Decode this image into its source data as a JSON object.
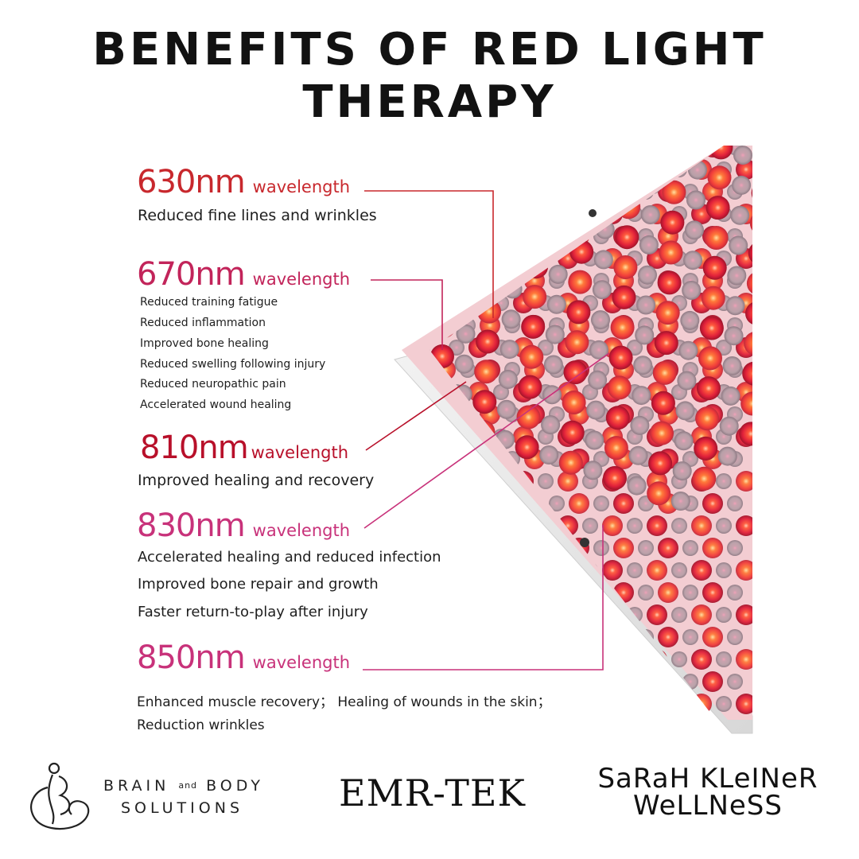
{
  "title": "BENEFITS OF RED LIGHT THERAPY",
  "colors": {
    "red": "#c8282d",
    "pink": "#c8327a",
    "dark_red": "#b8102a",
    "panel_bg": "#f3cdd2",
    "title": "#121212"
  },
  "wavelengths": [
    {
      "value": "630nm",
      "word": "wavelength",
      "color": "#c8282d",
      "benefits": [
        "Reduced fine lines and wrinkles"
      ]
    },
    {
      "value": "670nm",
      "word": "wavelength",
      "color": "#c2245a",
      "benefits": [
        "Reduced training fatigue",
        "Reduced inflammation",
        "Improved bone healing",
        "Reduced swelling following injury",
        "Reduced neuropathic pain",
        "Accelerated wound healing"
      ]
    },
    {
      "value": "810nm",
      "word": "wavelength",
      "color": "#b8102a",
      "benefits": [
        "Improved healing and recovery"
      ]
    },
    {
      "value": "830nm",
      "word": "wavelength",
      "color": "#c8327a",
      "benefits": [
        "Accelerated healing and reduced infection",
        "Improved bone repair and growth",
        "Faster return-to-play after injury"
      ]
    },
    {
      "value": "850nm",
      "word": "wavelength",
      "color": "#c8327a",
      "benefits": [
        "Enhanced muscle recovery；  Healing of wounds in the skin；",
        "Reduction  wrinkles"
      ]
    }
  ],
  "logos": {
    "brain_body": {
      "line1_a": "BRAIN",
      "line1_and": "and",
      "line1_b": "BODY",
      "line2": "SOLUTIONS",
      "icon": "brain-body-monogram-icon"
    },
    "emr_tek": "EMR-TEK",
    "sarah_kleiner": {
      "line1": "SaRaH KLeINeR",
      "line2": "WeLLNeSS"
    }
  }
}
